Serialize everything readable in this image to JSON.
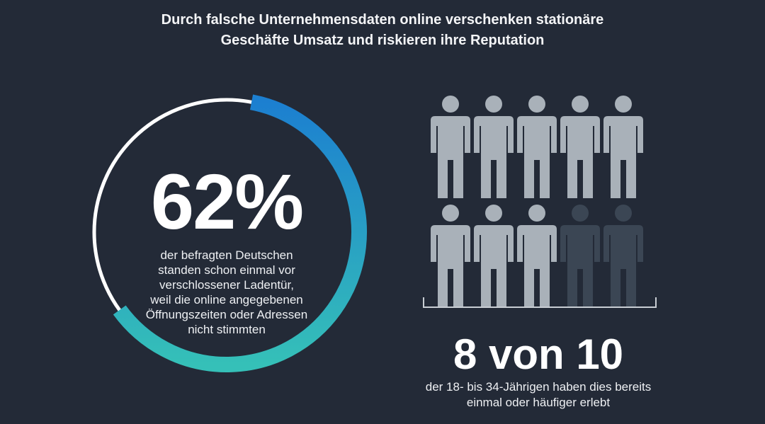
{
  "title": {
    "line1": "Durch falsche Unternehmensdaten online verschenken stationäre",
    "line2": "Geschäfte Umsatz und riskieren ihre Reputation"
  },
  "ring": {
    "percent_value": 0.62,
    "percent_label": "62%",
    "text_lines": [
      "der befragten Deutschen",
      "standen schon einmal vor",
      "verschlossener Ladentür,",
      "weil die online angegebenen",
      "Öffnungszeiten oder Adressen",
      "nicht stimmten"
    ]
  },
  "people": {
    "highlighted": 8,
    "total": 10,
    "headline": "8 von 10",
    "text_lines": [
      "der 18- bis 34-Jährigen haben dies bereits",
      "einmal oder häufiger erlebt"
    ]
  },
  "colors": {
    "background": "#232a37",
    "ring_remainder": "#ffffff",
    "ring_gradient_top": "#1c7fd0",
    "ring_gradient_bottom": "#35c0b8",
    "person_active": "#a9b1b9",
    "person_inactive": "#3b4654"
  },
  "icons": {
    "person": "person-icon"
  }
}
